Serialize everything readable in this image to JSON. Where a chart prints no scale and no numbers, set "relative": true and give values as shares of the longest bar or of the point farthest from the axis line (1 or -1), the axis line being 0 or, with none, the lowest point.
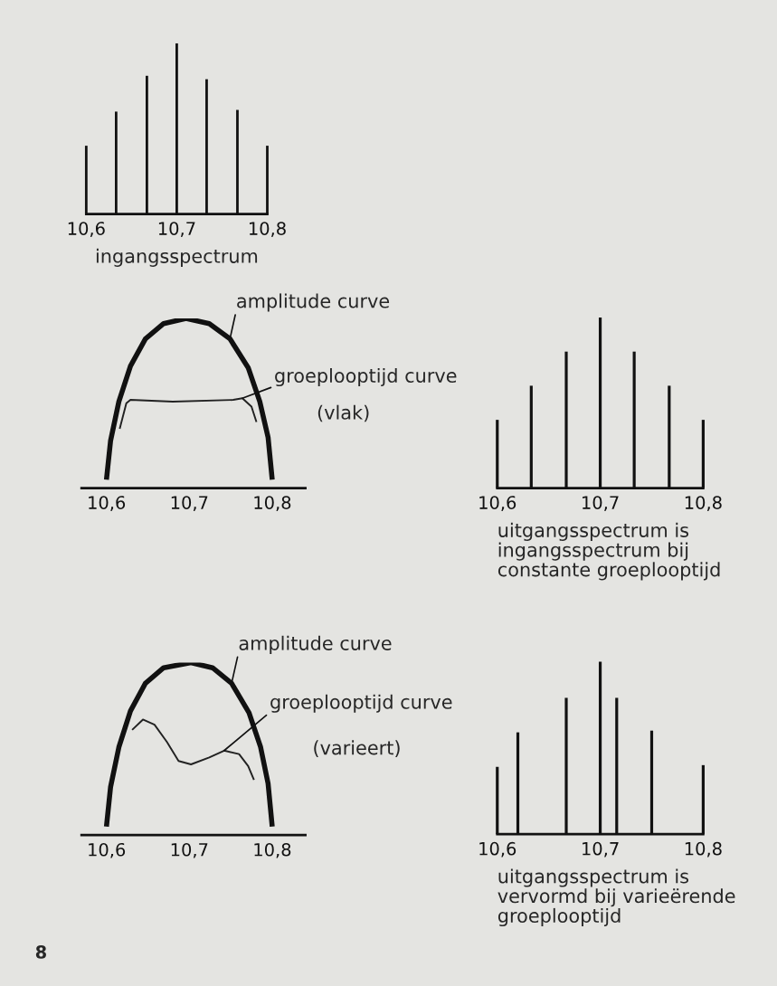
{
  "chart_data": [
    {
      "type": "bar",
      "relative": true,
      "x": [
        10.6,
        10.633,
        10.667,
        10.7,
        10.733,
        10.767,
        10.8
      ],
      "values": [
        0.4,
        0.6,
        0.81,
        1,
        0.79,
        0.61,
        0.4
      ],
      "color": "#111111",
      "xlim": [
        10.6,
        10.8
      ],
      "xticks": [
        {
          "value": 10.6,
          "label": "10,6"
        },
        {
          "value": 10.7,
          "label": "10,7"
        },
        {
          "value": 10.8,
          "label": "10,8"
        }
      ],
      "xlabel": "ingangsspectrum",
      "grid": false,
      "legend": false
    },
    {
      "type": "line",
      "relative": true,
      "xlim": [
        10.57,
        10.84
      ],
      "xticks": [
        {
          "value": 10.6,
          "label": "10,6"
        },
        {
          "value": 10.7,
          "label": "10,7"
        },
        {
          "value": 10.8,
          "label": "10,8"
        }
      ],
      "grid": false,
      "legend": false,
      "series": [
        {
          "name": "amplitude curve",
          "color": "#111111",
          "x": [
            10.6,
            10.605,
            10.615,
            10.629,
            10.647,
            10.669,
            10.696,
            10.724,
            10.749,
            10.771,
            10.785,
            10.795,
            10.8
          ],
          "values": [
            0.05,
            0.28,
            0.51,
            0.72,
            0.88,
            0.97,
            1,
            0.97,
            0.88,
            0.71,
            0.51,
            0.3,
            0.05
          ]
        },
        {
          "name": "groeplooptijd curve",
          "color": "#222222",
          "x": [
            10.616,
            10.624,
            10.629,
            10.68,
            10.753,
            10.764,
            10.775,
            10.781
          ],
          "values": [
            0.35,
            0.5,
            0.52,
            0.51,
            0.52,
            0.53,
            0.48,
            0.39
          ]
        }
      ],
      "annotations": [
        "(vlak)"
      ]
    },
    {
      "type": "bar",
      "relative": true,
      "x": [
        10.6,
        10.633,
        10.667,
        10.7,
        10.733,
        10.767,
        10.8
      ],
      "values": [
        0.4,
        0.6,
        0.8,
        1,
        0.8,
        0.6,
        0.4
      ],
      "color": "#111111",
      "xlim": [
        10.6,
        10.8
      ],
      "xticks": [
        {
          "value": 10.6,
          "label": "10,6"
        },
        {
          "value": 10.7,
          "label": "10,7"
        },
        {
          "value": 10.8,
          "label": "10,8"
        }
      ],
      "xlabel": "uitgangsspectrum is\ningangsspectrum bij\nconstante groeplooptijd",
      "grid": false,
      "legend": false
    },
    {
      "type": "line",
      "relative": true,
      "xlim": [
        10.57,
        10.84
      ],
      "xticks": [
        {
          "value": 10.6,
          "label": "10,6"
        },
        {
          "value": 10.7,
          "label": "10,7"
        },
        {
          "value": 10.8,
          "label": "10,8"
        }
      ],
      "grid": false,
      "legend": false,
      "series": [
        {
          "name": "amplitude curve",
          "color": "#111111",
          "x": [
            10.6,
            10.605,
            10.615,
            10.629,
            10.647,
            10.669,
            10.702,
            10.728,
            10.751,
            10.772,
            10.786,
            10.795,
            10.8
          ],
          "values": [
            0.05,
            0.28,
            0.51,
            0.72,
            0.88,
            0.97,
            1,
            0.97,
            0.88,
            0.71,
            0.51,
            0.3,
            0.05
          ]
        },
        {
          "name": "groeplooptijd curve",
          "color": "#222222",
          "x": [
            10.631,
            10.644,
            10.658,
            10.673,
            10.687,
            10.702,
            10.724,
            10.742,
            10.76,
            10.771,
            10.778
          ],
          "values": [
            0.61,
            0.67,
            0.64,
            0.54,
            0.43,
            0.41,
            0.45,
            0.49,
            0.47,
            0.4,
            0.32
          ]
        }
      ],
      "annotations": [
        "(varieert)"
      ]
    },
    {
      "type": "bar",
      "relative": true,
      "x": [
        10.6,
        10.62,
        10.667,
        10.7,
        10.716,
        10.75,
        10.8
      ],
      "values": [
        0.39,
        0.59,
        0.79,
        1,
        0.79,
        0.6,
        0.4
      ],
      "color": "#111111",
      "xlim": [
        10.6,
        10.8
      ],
      "xticks": [
        {
          "value": 10.6,
          "label": "10,6"
        },
        {
          "value": 10.7,
          "label": "10,7"
        },
        {
          "value": 10.8,
          "label": "10,8"
        }
      ],
      "xlabel": "uitgangsspectrum is\nvervormd bij varieërende\ngroeplooptijd",
      "grid": false,
      "legend": false,
      "annotations": [
        "8"
      ]
    }
  ]
}
